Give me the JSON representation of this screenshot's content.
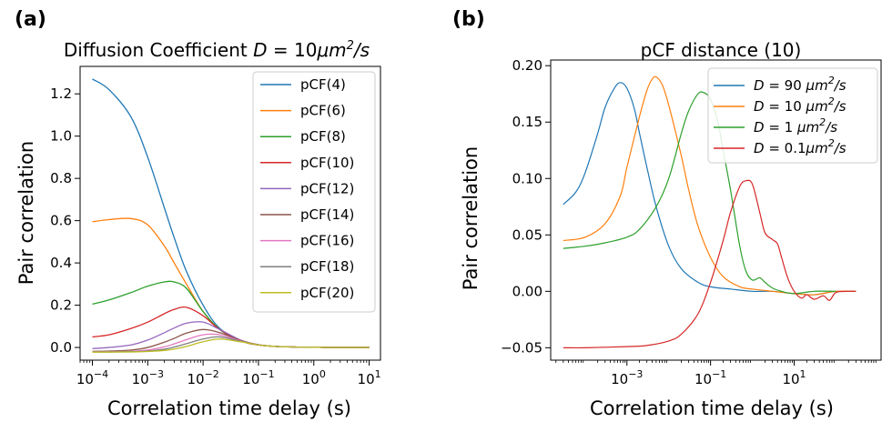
{
  "figure": {
    "panel_a_label": "(a)",
    "panel_b_label": "(b)"
  },
  "chart_data": [
    {
      "type": "line",
      "panel": "(a)",
      "title_plain": "Diffusion Coefficient ",
      "title_math": "D",
      "title_eq": " = 10",
      "title_unit_pre": "μm",
      "title_unit_sup": "2",
      "title_unit_post": "/s",
      "xlabel": "Correlation time delay (s)",
      "ylabel": "Pair correlation",
      "xscale": "log",
      "xlim": [
        6e-05,
        16
      ],
      "ylim": [
        -0.06,
        1.33
      ],
      "xticks": [
        0.0001,
        0.001,
        0.01,
        0.1,
        1,
        10
      ],
      "xtick_labels": [
        {
          "base": "10",
          "exp": "−4"
        },
        {
          "base": "10",
          "exp": "−3"
        },
        {
          "base": "10",
          "exp": "−2"
        },
        {
          "base": "10",
          "exp": "−1"
        },
        {
          "base": "10",
          "exp": "0"
        },
        {
          "base": "10",
          "exp": "1"
        }
      ],
      "yticks": [
        0.0,
        0.2,
        0.4,
        0.6,
        0.8,
        1.0,
        1.2
      ],
      "ytick_labels": [
        "0.0",
        "0.2",
        "0.4",
        "0.6",
        "0.8",
        "1.0",
        "1.2"
      ],
      "legend_position": "top-right",
      "grid": false,
      "x": [
        0.0001,
        0.0002,
        0.0005,
        0.001,
        0.002,
        0.003,
        0.005,
        0.01,
        0.02,
        0.05,
        0.1,
        0.2,
        0.5,
        1,
        2,
        5,
        10
      ],
      "series": [
        {
          "name": "pCF(4)",
          "color": "#1f77b4",
          "values": [
            1.27,
            1.22,
            1.09,
            0.9,
            0.66,
            0.52,
            0.36,
            0.2,
            0.09,
            0.03,
            0.012,
            0.005,
            0.002,
            0.001,
            0.0,
            0.0,
            0.0
          ]
        },
        {
          "name": "pCF(6)",
          "color": "#ff7f0e",
          "values": [
            0.595,
            0.605,
            0.61,
            0.58,
            0.48,
            0.4,
            0.3,
            0.17,
            0.085,
            0.03,
            0.012,
            0.005,
            0.002,
            0.001,
            0.0,
            0.0,
            0.0
          ]
        },
        {
          "name": "pCF(8)",
          "color": "#2ca02c",
          "values": [
            0.205,
            0.225,
            0.26,
            0.29,
            0.31,
            0.31,
            0.28,
            0.17,
            0.085,
            0.03,
            0.012,
            0.005,
            0.002,
            0.001,
            0.0,
            0.0,
            0.0
          ]
        },
        {
          "name": "pCF(10)",
          "color": "#d62728",
          "values": [
            0.05,
            0.06,
            0.09,
            0.12,
            0.16,
            0.18,
            0.19,
            0.15,
            0.085,
            0.03,
            0.012,
            0.005,
            0.002,
            0.001,
            0.0,
            0.0,
            0.0
          ]
        },
        {
          "name": "pCF(12)",
          "color": "#9467bd",
          "values": [
            -0.005,
            0.0,
            0.012,
            0.035,
            0.07,
            0.092,
            0.115,
            0.12,
            0.085,
            0.033,
            0.013,
            0.005,
            0.002,
            0.001,
            0.0,
            0.0,
            0.0
          ]
        },
        {
          "name": "pCF(14)",
          "color": "#8c564b",
          "values": [
            -0.018,
            -0.017,
            -0.012,
            0.0,
            0.025,
            0.043,
            0.068,
            0.085,
            0.07,
            0.032,
            0.013,
            0.005,
            0.002,
            0.001,
            0.0,
            0.0,
            0.0
          ]
        },
        {
          "name": "pCF(16)",
          "color": "#e377c2",
          "values": [
            -0.02,
            -0.02,
            -0.018,
            -0.012,
            0.003,
            0.017,
            0.037,
            0.06,
            0.06,
            0.03,
            0.013,
            0.005,
            0.002,
            0.001,
            0.0,
            0.0,
            0.0
          ]
        },
        {
          "name": "pCF(18)",
          "color": "#7f7f7f",
          "values": [
            -0.021,
            -0.021,
            -0.02,
            -0.017,
            -0.008,
            0.002,
            0.018,
            0.04,
            0.05,
            0.028,
            0.012,
            0.005,
            0.002,
            0.001,
            0.0,
            0.0,
            0.0
          ]
        },
        {
          "name": "pCF(20)",
          "color": "#bcbd22",
          "values": [
            -0.022,
            -0.022,
            -0.021,
            -0.019,
            -0.014,
            -0.008,
            0.005,
            0.027,
            0.04,
            0.026,
            0.012,
            0.005,
            0.002,
            0.001,
            0.0,
            0.0,
            0.0
          ]
        }
      ]
    },
    {
      "type": "line",
      "panel": "(b)",
      "title": "pCF distance (10)",
      "xlabel": "Correlation time delay (s)",
      "ylabel": "Pair correlation",
      "xscale": "log",
      "xlim": [
        1.5e-05,
        1200
      ],
      "ylim": [
        -0.061,
        0.205
      ],
      "xticks": [
        0.001,
        0.1,
        10
      ],
      "xtick_labels": [
        {
          "base": "10",
          "exp": "−3"
        },
        {
          "base": "10",
          "exp": "−1"
        },
        {
          "base": "10",
          "exp": "1"
        }
      ],
      "yticks": [
        -0.05,
        0.0,
        0.05,
        0.1,
        0.15,
        0.2
      ],
      "ytick_labels": [
        "−0.05",
        "0.00",
        "0.05",
        "0.10",
        "0.15",
        "0.20"
      ],
      "legend_position": "top-right",
      "grid": false,
      "series": [
        {
          "name_math": "D",
          "name_eq": " = 90  ",
          "name_unit_pre": "μm",
          "name_unit_sup": "2",
          "name_unit_post": "/s",
          "color": "#1f77b4",
          "x": [
            3e-05,
            6e-05,
            0.0001,
            0.0002,
            0.0003,
            0.0005,
            0.0007,
            0.001,
            0.0015,
            0.002,
            0.003,
            0.005,
            0.01,
            0.02,
            0.05,
            0.1,
            0.3,
            1,
            3,
            10,
            30,
            100,
            300
          ],
          "y": [
            0.077,
            0.088,
            0.105,
            0.14,
            0.163,
            0.18,
            0.185,
            0.18,
            0.162,
            0.14,
            0.11,
            0.075,
            0.04,
            0.02,
            0.008,
            0.004,
            0.002,
            0.0,
            0.0,
            -0.002,
            -0.003,
            0.0,
            0.0
          ]
        },
        {
          "name_math": "D",
          "name_eq": " = 10  ",
          "name_unit_pre": "μm",
          "name_unit_sup": "2",
          "name_unit_post": "/s",
          "color": "#ff7f0e",
          "x": [
            3e-05,
            0.0001,
            0.0003,
            0.0007,
            0.001,
            0.002,
            0.003,
            0.004,
            0.005,
            0.007,
            0.01,
            0.02,
            0.03,
            0.05,
            0.1,
            0.2,
            0.5,
            1,
            3,
            10,
            30,
            100,
            300
          ],
          "y": [
            0.045,
            0.048,
            0.06,
            0.085,
            0.11,
            0.155,
            0.178,
            0.188,
            0.19,
            0.183,
            0.165,
            0.12,
            0.09,
            0.058,
            0.03,
            0.013,
            0.004,
            0.002,
            0.0,
            -0.002,
            -0.003,
            0.0,
            0.0
          ]
        },
        {
          "name_math": "D",
          "name_eq": " = 1  ",
          "name_unit_pre": "μm",
          "name_unit_sup": "2",
          "name_unit_post": "/s",
          "color": "#2ca02c",
          "x": [
            3e-05,
            0.0001,
            0.0003,
            0.001,
            0.002,
            0.005,
            0.01,
            0.02,
            0.03,
            0.05,
            0.07,
            0.1,
            0.15,
            0.2,
            0.3,
            0.5,
            0.7,
            1,
            1.5,
            2,
            3,
            5,
            10,
            30,
            100
          ],
          "y": [
            0.038,
            0.04,
            0.043,
            0.048,
            0.055,
            0.075,
            0.1,
            0.14,
            0.16,
            0.175,
            0.176,
            0.17,
            0.15,
            0.125,
            0.09,
            0.04,
            0.018,
            0.01,
            0.012,
            0.008,
            0.003,
            0.0,
            -0.002,
            0.0,
            0.0
          ]
        },
        {
          "name_math": "D",
          "name_eq": " = 0.1",
          "name_unit_pre": "μm",
          "name_unit_sup": "2",
          "name_unit_post": "/s",
          "color": "#d62728",
          "x": [
            3e-05,
            0.0001,
            0.001,
            0.003,
            0.01,
            0.02,
            0.05,
            0.1,
            0.2,
            0.3,
            0.5,
            0.7,
            1,
            1.5,
            2,
            3,
            4,
            5,
            7,
            10,
            15,
            20,
            30,
            50,
            70,
            100,
            200,
            300
          ],
          "y": [
            -0.05,
            -0.05,
            -0.049,
            -0.048,
            -0.044,
            -0.038,
            -0.02,
            0.008,
            0.045,
            0.07,
            0.093,
            0.098,
            0.095,
            0.07,
            0.052,
            0.046,
            0.042,
            0.03,
            0.012,
            0.0,
            -0.006,
            -0.003,
            -0.007,
            -0.004,
            -0.008,
            -0.001,
            0.0,
            0.0
          ]
        }
      ]
    }
  ]
}
